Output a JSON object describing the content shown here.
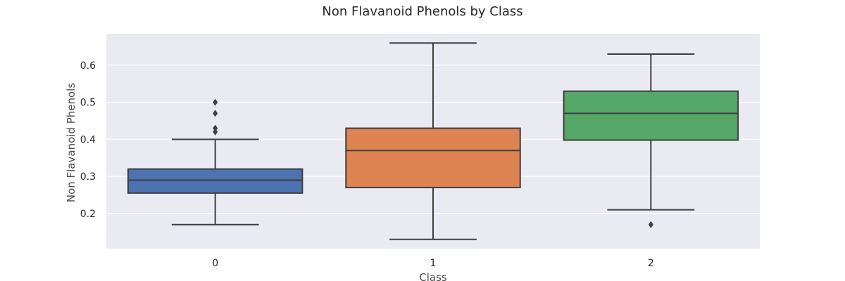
{
  "chart_data": {
    "type": "box",
    "title": "Non Flavanoid Phenols by Class",
    "xlabel": "Class",
    "ylabel": "Non Flavanoid Phenols",
    "ylim": [
      0.105,
      0.685
    ],
    "yticks": [
      "0.2",
      "0.3",
      "0.4",
      "0.5",
      "0.6"
    ],
    "grid": true,
    "categories": [
      "0",
      "1",
      "2"
    ],
    "boxes": [
      {
        "category": "0",
        "whisker_low": 0.17,
        "q1": 0.255,
        "median": 0.29,
        "q3": 0.32,
        "whisker_high": 0.4,
        "outliers": [
          0.42,
          0.43,
          0.47,
          0.5
        ],
        "color": "#4c72b0"
      },
      {
        "category": "1",
        "whisker_low": 0.13,
        "q1": 0.27,
        "median": 0.37,
        "q3": 0.43,
        "whisker_high": 0.66,
        "outliers": [],
        "color": "#dd8452"
      },
      {
        "category": "2",
        "whisker_low": 0.21,
        "q1": 0.398,
        "median": 0.47,
        "q3": 0.53,
        "whisker_high": 0.63,
        "outliers": [
          0.17
        ],
        "color": "#55a868"
      }
    ]
  }
}
